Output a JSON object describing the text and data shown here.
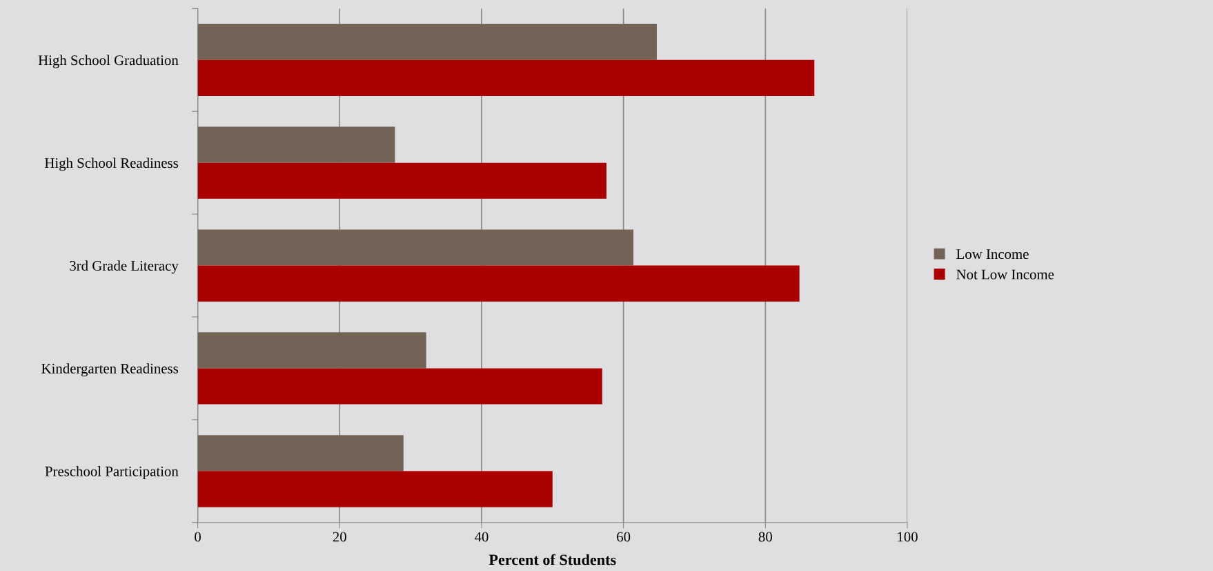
{
  "chart_data": {
    "type": "bar",
    "orientation": "horizontal",
    "xlabel": "Percent of Students",
    "categories": [
      "High School Graduation",
      "High School Readiness",
      "3rd Grade Literacy",
      "Kindergarten Readiness",
      "Preschool Participation"
    ],
    "series": [
      {
        "name": "Low Income",
        "color": "#736357",
        "values": [
          64.7,
          27.8,
          61.4,
          32.2,
          29.0
        ]
      },
      {
        "name": "Not Low Income",
        "color": "#ab0000",
        "values": [
          86.9,
          57.6,
          84.8,
          57.0,
          50.0
        ]
      }
    ],
    "xlim": [
      0,
      100
    ],
    "xticks": [
      0,
      20,
      40,
      60,
      80,
      100
    ],
    "grid": "x",
    "legend": "right"
  }
}
